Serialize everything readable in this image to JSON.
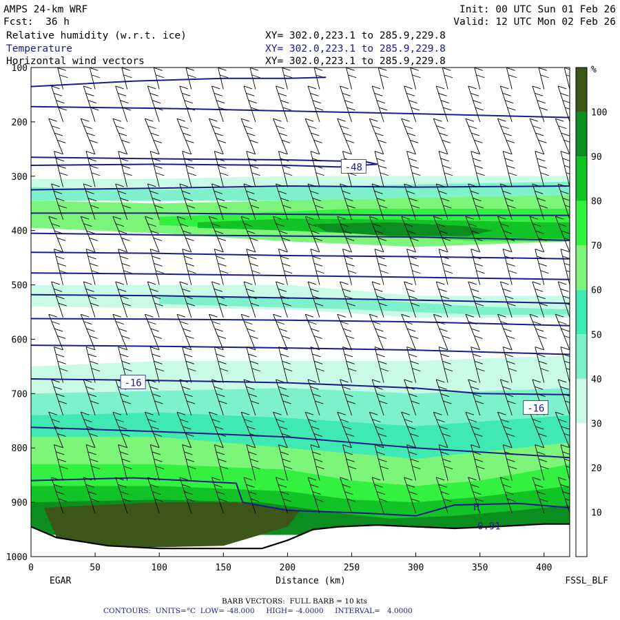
{
  "header": {
    "model": "AMPS 24-km WRF",
    "init": "Init: 00 UTC Sun 01 Feb 26",
    "fcst": "Fcst:  36 h",
    "valid": "Valid: 12 UTC Mon 02 Feb 26",
    "field1": "Relative humidity (w.r.t. ice)",
    "field2": "Temperature",
    "field3": "Horizontal wind vectors",
    "xy": "XY= 302.0,223.1 to 285.9,229.8"
  },
  "footer": {
    "barb": "BARB VECTORS:  FULL BARB = 10 kts",
    "contours": "CONTOURS:  UNITS=°C  LOW= -48.000     HIGH= -4.0000     INTERVAL=   4.0000"
  },
  "chart_data": {
    "type": "heatmap",
    "xlabel": "Distance (km)",
    "xlim": [
      0,
      420
    ],
    "x_ticks": [
      0,
      50,
      100,
      150,
      200,
      250,
      300,
      350,
      400
    ],
    "ylim": [
      100,
      1000
    ],
    "y_ticks": [
      100,
      200,
      300,
      400,
      500,
      600,
      700,
      800,
      900,
      1000
    ],
    "start_label": "EGAR",
    "end_label": "FSSL_BLF",
    "colorbar": {
      "unit": "%",
      "levels": [
        10,
        20,
        30,
        40,
        50,
        60,
        70,
        80,
        90,
        100
      ],
      "colors": [
        "#ffffff",
        "#ffffff",
        "#ffffff",
        "#c8fae6",
        "#7ff0cc",
        "#40e8b4",
        "#7cf57a",
        "#34f040",
        "#12c326",
        "#0c8d20",
        "#3c561a"
      ]
    },
    "rh_bands": [
      {
        "level": 30,
        "points": [
          [
            0,
            305
          ],
          [
            100,
            305
          ],
          [
            200,
            300
          ],
          [
            300,
            300
          ],
          [
            420,
            300
          ],
          [
            420,
            335
          ],
          [
            300,
            340
          ],
          [
            200,
            340
          ],
          [
            100,
            340
          ],
          [
            0,
            335
          ]
        ]
      },
      {
        "level": 40,
        "points": [
          [
            0,
            320
          ],
          [
            100,
            325
          ],
          [
            200,
            320
          ],
          [
            300,
            315
          ],
          [
            420,
            310
          ],
          [
            420,
            345
          ],
          [
            300,
            350
          ],
          [
            200,
            345
          ],
          [
            100,
            345
          ],
          [
            0,
            345
          ]
        ]
      },
      {
        "level": 60,
        "points": [
          [
            0,
            345
          ],
          [
            100,
            350
          ],
          [
            200,
            345
          ],
          [
            300,
            340
          ],
          [
            420,
            335
          ],
          [
            420,
            420
          ],
          [
            300,
            430
          ],
          [
            200,
            420
          ],
          [
            100,
            405
          ],
          [
            0,
            395
          ]
        ]
      },
      {
        "level": 70,
        "points": [
          [
            100,
            375
          ],
          [
            150,
            370
          ],
          [
            250,
            360
          ],
          [
            350,
            360
          ],
          [
            420,
            360
          ],
          [
            420,
            420
          ],
          [
            350,
            420
          ],
          [
            250,
            405
          ],
          [
            150,
            395
          ],
          [
            100,
            390
          ]
        ]
      },
      {
        "level": 80,
        "points": [
          [
            130,
            385
          ],
          [
            200,
            378
          ],
          [
            300,
            380
          ],
          [
            400,
            385
          ],
          [
            420,
            385
          ],
          [
            420,
            415
          ],
          [
            400,
            415
          ],
          [
            300,
            410
          ],
          [
            200,
            400
          ],
          [
            130,
            395
          ]
        ]
      },
      {
        "level": 90,
        "points": [
          [
            220,
            388
          ],
          [
            280,
            385
          ],
          [
            340,
            392
          ],
          [
            360,
            400
          ],
          [
            340,
            410
          ],
          [
            280,
            410
          ],
          [
            230,
            402
          ]
        ]
      },
      {
        "level": 30,
        "points": [
          [
            0,
            500
          ],
          [
            200,
            500
          ],
          [
            300,
            520
          ],
          [
            420,
            520
          ],
          [
            420,
            560
          ],
          [
            300,
            560
          ],
          [
            200,
            545
          ],
          [
            0,
            540
          ]
        ]
      },
      {
        "level": 40,
        "points": [
          [
            100,
            520
          ],
          [
            250,
            525
          ],
          [
            350,
            540
          ],
          [
            420,
            545
          ],
          [
            420,
            555
          ],
          [
            350,
            555
          ],
          [
            250,
            545
          ],
          [
            100,
            535
          ]
        ]
      },
      {
        "level": 30,
        "points": [
          [
            0,
            650
          ],
          [
            100,
            640
          ],
          [
            200,
            640
          ],
          [
            300,
            640
          ],
          [
            420,
            630
          ],
          [
            420,
            960
          ],
          [
            0,
            960
          ]
        ]
      },
      {
        "level": 40,
        "points": [
          [
            0,
            700
          ],
          [
            200,
            690
          ],
          [
            300,
            700
          ],
          [
            420,
            690
          ],
          [
            420,
            960
          ],
          [
            0,
            960
          ]
        ]
      },
      {
        "level": 50,
        "points": [
          [
            0,
            740
          ],
          [
            100,
            735
          ],
          [
            200,
            745
          ],
          [
            300,
            760
          ],
          [
            420,
            740
          ],
          [
            420,
            960
          ],
          [
            0,
            960
          ]
        ]
      },
      {
        "level": 60,
        "points": [
          [
            0,
            780
          ],
          [
            100,
            780
          ],
          [
            200,
            800
          ],
          [
            300,
            820
          ],
          [
            420,
            790
          ],
          [
            420,
            960
          ],
          [
            0,
            960
          ]
        ]
      },
      {
        "level": 70,
        "points": [
          [
            0,
            830
          ],
          [
            100,
            830
          ],
          [
            200,
            840
          ],
          [
            250,
            860
          ],
          [
            300,
            870
          ],
          [
            350,
            860
          ],
          [
            420,
            830
          ],
          [
            420,
            960
          ],
          [
            0,
            960
          ]
        ]
      },
      {
        "level": 80,
        "points": [
          [
            0,
            870
          ],
          [
            100,
            870
          ],
          [
            200,
            880
          ],
          [
            250,
            895
          ],
          [
            300,
            900
          ],
          [
            350,
            890
          ],
          [
            420,
            870
          ],
          [
            420,
            960
          ],
          [
            0,
            960
          ]
        ]
      },
      {
        "level": 90,
        "points": [
          [
            0,
            900
          ],
          [
            100,
            895
          ],
          [
            180,
            900
          ],
          [
            240,
            920
          ],
          [
            280,
            930
          ],
          [
            330,
            925
          ],
          [
            380,
            915
          ],
          [
            420,
            905
          ],
          [
            420,
            960
          ],
          [
            0,
            960
          ]
        ]
      },
      {
        "level": 100,
        "points": [
          [
            10,
            910
          ],
          [
            100,
            900
          ],
          [
            160,
            900
          ],
          [
            210,
            915
          ],
          [
            200,
            945
          ],
          [
            150,
            980
          ],
          [
            60,
            985
          ],
          [
            20,
            965
          ]
        ]
      }
    ],
    "terrain": [
      [
        0,
        945
      ],
      [
        20,
        965
      ],
      [
        60,
        980
      ],
      [
        100,
        985
      ],
      [
        150,
        985
      ],
      [
        180,
        985
      ],
      [
        200,
        970
      ],
      [
        220,
        950
      ],
      [
        240,
        945
      ],
      [
        270,
        942
      ],
      [
        300,
        945
      ],
      [
        330,
        948
      ],
      [
        360,
        945
      ],
      [
        400,
        940
      ],
      [
        420,
        940
      ]
    ],
    "temp_contours": [
      {
        "points": [
          [
            0,
            135
          ],
          [
            80,
            125
          ],
          [
            150,
            120
          ],
          [
            200,
            120
          ],
          [
            230,
            118
          ]
        ]
      },
      {
        "points": [
          [
            0,
            172
          ],
          [
            100,
            175
          ],
          [
            200,
            180
          ],
          [
            300,
            185
          ],
          [
            420,
            192
          ]
        ]
      },
      {
        "points": [
          [
            0,
            265
          ],
          [
            100,
            268
          ],
          [
            200,
            270
          ],
          [
            260,
            273
          ],
          [
            270,
            278
          ],
          [
            240,
            283
          ],
          [
            200,
            280
          ],
          [
            100,
            278
          ],
          [
            0,
            280
          ]
        ]
      },
      {
        "points": [
          [
            0,
            325
          ],
          [
            100,
            322
          ],
          [
            200,
            318
          ],
          [
            300,
            320
          ],
          [
            420,
            318
          ]
        ]
      },
      {
        "points": [
          [
            0,
            368
          ],
          [
            100,
            368
          ],
          [
            200,
            370
          ],
          [
            300,
            372
          ],
          [
            420,
            372
          ]
        ]
      },
      {
        "points": [
          [
            0,
            405
          ],
          [
            100,
            408
          ],
          [
            200,
            410
          ],
          [
            300,
            412
          ],
          [
            420,
            418
          ]
        ]
      },
      {
        "points": [
          [
            0,
            440
          ],
          [
            100,
            442
          ],
          [
            200,
            446
          ],
          [
            300,
            448
          ],
          [
            420,
            452
          ]
        ]
      },
      {
        "points": [
          [
            0,
            478
          ],
          [
            100,
            480
          ],
          [
            200,
            483
          ],
          [
            300,
            486
          ],
          [
            420,
            490
          ]
        ]
      },
      {
        "points": [
          [
            0,
            518
          ],
          [
            100,
            520
          ],
          [
            200,
            524
          ],
          [
            300,
            528
          ],
          [
            420,
            534
          ]
        ]
      },
      {
        "points": [
          [
            0,
            562
          ],
          [
            100,
            563
          ],
          [
            200,
            565
          ],
          [
            300,
            568
          ],
          [
            420,
            575
          ]
        ]
      },
      {
        "points": [
          [
            0,
            611
          ],
          [
            100,
            613
          ],
          [
            200,
            616
          ],
          [
            300,
            620
          ],
          [
            420,
            628
          ]
        ]
      },
      {
        "points": [
          [
            0,
            673
          ],
          [
            100,
            676
          ],
          [
            200,
            680
          ],
          [
            300,
            690
          ],
          [
            350,
            700
          ],
          [
            420,
            702
          ]
        ]
      },
      {
        "points": [
          [
            0,
            762
          ],
          [
            100,
            770
          ],
          [
            200,
            780
          ],
          [
            300,
            800
          ],
          [
            420,
            818
          ]
        ]
      },
      {
        "points": [
          [
            0,
            860
          ],
          [
            80,
            855
          ],
          [
            160,
            865
          ],
          [
            165,
            900
          ],
          [
            200,
            915
          ],
          [
            260,
            920
          ],
          [
            300,
            925
          ],
          [
            330,
            905
          ],
          [
            380,
            902
          ],
          [
            420,
            910
          ]
        ]
      }
    ],
    "temp_labels": [
      {
        "text": "-48",
        "x": 251,
        "y": 283
      },
      {
        "text": "-16",
        "x": 79,
        "y": 680
      },
      {
        "text": "-16",
        "x": 393,
        "y": 727
      }
    ],
    "annotations": [
      {
        "text": "H",
        "x": 345,
        "y": 915
      },
      {
        "text": "0.91",
        "x": 348,
        "y": 950
      }
    ],
    "wind_x": [
      25,
      50,
      75,
      100,
      125,
      150,
      175,
      200,
      225,
      250,
      275,
      300,
      325,
      350,
      375,
      400,
      420
    ],
    "wind_p": [
      140,
      200,
      260,
      320,
      380,
      440,
      500,
      560,
      620,
      680,
      740,
      800,
      860,
      920
    ]
  }
}
